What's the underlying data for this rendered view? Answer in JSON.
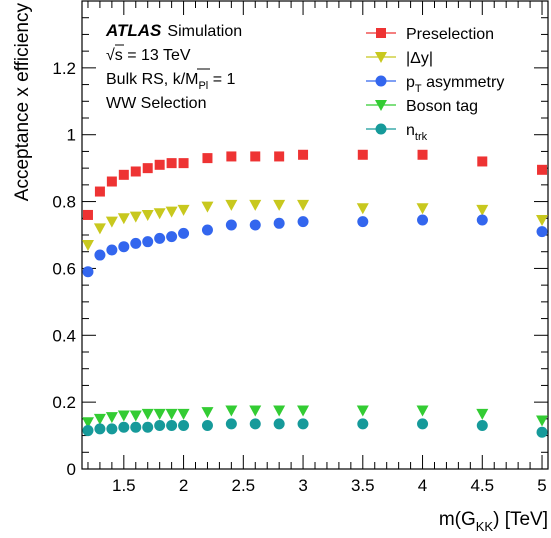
{
  "chart_data": {
    "type": "scatter",
    "xlabel_main": "m(G",
    "xlabel_sub": "KK",
    "xlabel_end": ") [TeV]",
    "ylabel": "Acceptance x efficiency",
    "xlim": [
      1.15,
      5.05
    ],
    "ylim": [
      0,
      1.4
    ],
    "x_ticks": [
      1.5,
      2,
      2.5,
      3,
      3.5,
      4,
      4.5,
      5
    ],
    "x_tick_labels": [
      "1.5",
      "2",
      "2.5",
      "3",
      "3.5",
      "4",
      "4.5",
      "5"
    ],
    "y_ticks": [
      0,
      0.2,
      0.4,
      0.6,
      0.8,
      1,
      1.2
    ],
    "y_tick_labels": [
      "0",
      "0.2",
      "0.4",
      "0.6",
      "0.8",
      "1",
      "1.2"
    ],
    "annotations": {
      "atlas": "ATLAS",
      "simulation": "Simulation",
      "energy_sqrt": "√s",
      "energy_rest": " = 13 TeV",
      "model_main": "Bulk RS, k/",
      "model_m": "M",
      "model_sub": "Pl",
      "model_end": " = 1",
      "selection": "WW Selection"
    },
    "x": [
      1.2,
      1.3,
      1.4,
      1.5,
      1.6,
      1.7,
      1.8,
      1.9,
      2.0,
      2.2,
      2.4,
      2.6,
      2.8,
      3.0,
      3.5,
      4.0,
      4.5,
      5.0
    ],
    "series": [
      {
        "name": "Preselection",
        "color": "#ee3333",
        "marker": "square",
        "values": [
          0.76,
          0.83,
          0.86,
          0.88,
          0.89,
          0.9,
          0.91,
          0.915,
          0.915,
          0.93,
          0.935,
          0.935,
          0.935,
          0.94,
          0.94,
          0.94,
          0.92,
          0.895
        ]
      },
      {
        "name": "|Δy|",
        "color": "#c8c81e",
        "marker": "triangle-down",
        "values": [
          0.67,
          0.72,
          0.74,
          0.75,
          0.755,
          0.76,
          0.765,
          0.77,
          0.775,
          0.785,
          0.79,
          0.79,
          0.79,
          0.79,
          0.78,
          0.78,
          0.775,
          0.745
        ]
      },
      {
        "name_main": "p",
        "name_sub": "T",
        "name_end": " asymmetry",
        "color": "#3366ee",
        "marker": "circle",
        "values": [
          0.59,
          0.64,
          0.655,
          0.665,
          0.675,
          0.68,
          0.69,
          0.695,
          0.705,
          0.715,
          0.73,
          0.73,
          0.735,
          0.74,
          0.74,
          0.745,
          0.745,
          0.71
        ]
      },
      {
        "name": "Boson tag",
        "color": "#33cc33",
        "marker": "triangle-down",
        "values": [
          0.14,
          0.15,
          0.155,
          0.16,
          0.16,
          0.165,
          0.165,
          0.165,
          0.165,
          0.17,
          0.175,
          0.175,
          0.175,
          0.175,
          0.175,
          0.175,
          0.165,
          0.145
        ]
      },
      {
        "name_main": "n",
        "name_sub": "trk",
        "color": "#169a9a",
        "marker": "circle",
        "values": [
          0.115,
          0.12,
          0.12,
          0.125,
          0.125,
          0.125,
          0.13,
          0.13,
          0.13,
          0.13,
          0.135,
          0.135,
          0.135,
          0.135,
          0.135,
          0.135,
          0.13,
          0.11
        ]
      }
    ],
    "legend_position": "top-right",
    "grid": false
  }
}
